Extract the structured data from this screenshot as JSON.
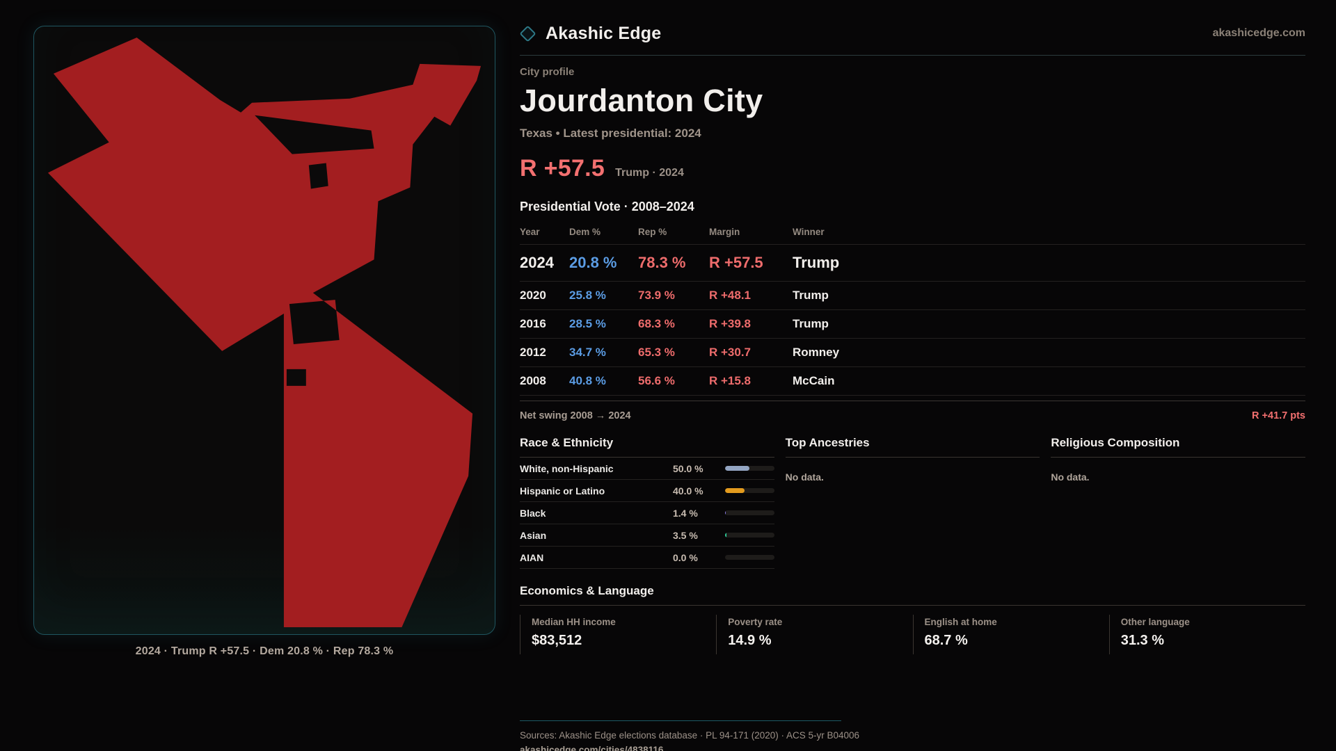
{
  "brand": {
    "name": "Akashic Edge",
    "site": "akashicedge.com"
  },
  "page": {
    "kicker": "City profile",
    "title": "Jourdanton City",
    "subtitle": "Texas • Latest presidential: 2024",
    "headline_margin": "R +57.5",
    "headline_note": "Trump · 2024"
  },
  "vote_table": {
    "title": "Presidential Vote · 2008–2024",
    "columns": [
      "Year",
      "Dem %",
      "Rep %",
      "Margin",
      "Winner"
    ],
    "rows": [
      {
        "year": "2024",
        "dem": "20.8 %",
        "rep": "78.3 %",
        "margin": "R +57.5",
        "winner": "Trump"
      },
      {
        "year": "2020",
        "dem": "25.8 %",
        "rep": "73.9 %",
        "margin": "R +48.1",
        "winner": "Trump"
      },
      {
        "year": "2016",
        "dem": "28.5 %",
        "rep": "68.3 %",
        "margin": "R +39.8",
        "winner": "Trump"
      },
      {
        "year": "2012",
        "dem": "34.7 %",
        "rep": "65.3 %",
        "margin": "R +30.7",
        "winner": "Romney"
      },
      {
        "year": "2008",
        "dem": "40.8 %",
        "rep": "56.6 %",
        "margin": "R +15.8",
        "winner": "McCain"
      }
    ],
    "net_swing_label": "Net swing 2008 → 2024",
    "net_swing_value": "R +41.7 pts"
  },
  "race": {
    "title": "Race & Ethnicity",
    "rows": [
      {
        "label": "White, non-Hispanic",
        "value": "50.0 %",
        "pct": 50,
        "color": "#93a5c2"
      },
      {
        "label": "Hispanic or Latino",
        "value": "40.0 %",
        "pct": 40,
        "color": "#e39b1e"
      },
      {
        "label": "Black",
        "value": "1.4 %",
        "pct": 1.4,
        "color": "#8f7ff0"
      },
      {
        "label": "Asian",
        "value": "3.5 %",
        "pct": 3.5,
        "color": "#2ecc9a"
      },
      {
        "label": "AIAN",
        "value": "0.0 %",
        "pct": 0,
        "color": "#93a5c2"
      }
    ]
  },
  "ancestries": {
    "title": "Top Ancestries",
    "empty": "No data."
  },
  "religion": {
    "title": "Religious Composition",
    "empty": "No data."
  },
  "economics": {
    "title": "Economics & Language",
    "stats": [
      {
        "label": "Median HH income",
        "value": "$83,512"
      },
      {
        "label": "Poverty rate",
        "value": "14.9 %"
      },
      {
        "label": "English at home",
        "value": "68.7 %"
      },
      {
        "label": "Other language",
        "value": "31.3 %"
      }
    ]
  },
  "map": {
    "caption": "2024 · Trump R +57.5 · Dem 20.8 % · Rep 78.3 %",
    "fill": "#a31e20",
    "outline": [
      "28,68",
      "148,16",
      "268,106",
      "298,124",
      "314,110",
      "455,104",
      "546,84",
      "556,54",
      "644,57",
      "638,78",
      "600,143",
      "577,130",
      "546,170",
      "542,232",
      "496,252",
      "490,336",
      "402,384",
      "632,558",
      "626,648",
      "530,866",
      "360,866",
      "360,414",
      "271,468",
      "20,211",
      "108,167"
    ],
    "holes": [
      [
        "318,128",
        "486,150",
        "490,176",
        "372,184"
      ],
      [
        "396,200",
        "421,197",
        "424,230",
        "399,234"
      ],
      [
        "368,400",
        "434,394",
        "440,452",
        "374,458"
      ],
      [
        "364,494",
        "392,494",
        "392,518",
        "364,518"
      ]
    ]
  },
  "footer": {
    "sources": "Sources: Akashic Edge elections database · PL 94-171 (2020) · ACS 5-yr B04006",
    "link": "akashicedge.com/cities/4838116"
  }
}
